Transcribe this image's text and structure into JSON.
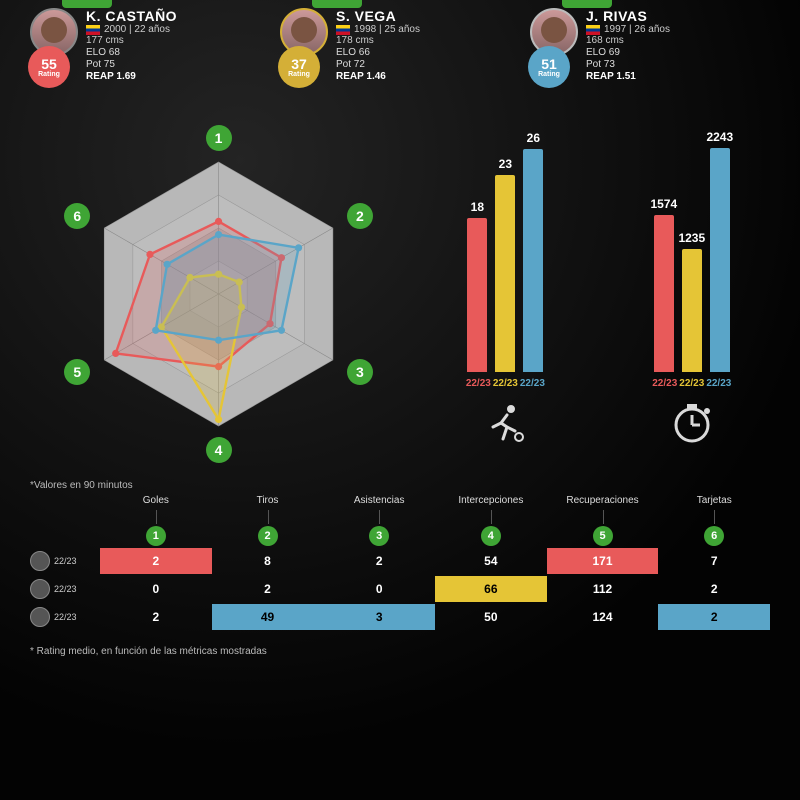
{
  "colors": {
    "p1": "#e85a5a",
    "p2": "#e5c536",
    "p3": "#5aa5c8",
    "green": "#3fa535",
    "bg": "#1a1a1a"
  },
  "season_label": "22/23",
  "players": [
    {
      "name": "K. CASTAÑO",
      "birth_age": "2000 | 22 años",
      "height": "177 cms",
      "rating": "55",
      "rating_label": "Rating",
      "elo": "ELO 68",
      "pot": "Pot 75",
      "reap": "REAP 1.69",
      "badge_style": "red"
    },
    {
      "name": "S. VEGA",
      "birth_age": "1998 | 25 años",
      "height": "178 cms",
      "rating": "37",
      "rating_label": "Rating",
      "elo": "ELO 66",
      "pot": "Pot 72",
      "reap": "REAP 1.46",
      "badge_style": "yellow"
    },
    {
      "name": "J. RIVAS",
      "birth_age": "1997 | 26 años",
      "height": "168 cms",
      "rating": "51",
      "rating_label": "Rating",
      "elo": "ELO 69",
      "pot": "Pot 73",
      "reap": "REAP 1.51",
      "badge_style": "blue"
    }
  ],
  "radar": {
    "axes": [
      "1",
      "2",
      "3",
      "4",
      "5",
      "6"
    ],
    "max_rings": 4,
    "series": [
      {
        "color": "#e85a5a",
        "values": [
          0.55,
          0.55,
          0.45,
          0.55,
          0.9,
          0.6
        ]
      },
      {
        "color": "#e5c536",
        "values": [
          0.15,
          0.18,
          0.2,
          0.95,
          0.5,
          0.25
        ]
      },
      {
        "color": "#5aa5c8",
        "values": [
          0.45,
          0.7,
          0.55,
          0.35,
          0.55,
          0.45
        ]
      }
    ]
  },
  "bars": {
    "groups": [
      {
        "icon": "runner",
        "max": 28,
        "values": [
          {
            "v": 18,
            "color": "#e85a5a",
            "label": "18"
          },
          {
            "v": 23,
            "color": "#e5c536",
            "label": "23"
          },
          {
            "v": 26,
            "color": "#5aa5c8",
            "label": "26"
          }
        ]
      },
      {
        "icon": "clock",
        "max": 2400,
        "values": [
          {
            "v": 1574,
            "color": "#e85a5a",
            "label": "1574"
          },
          {
            "v": 1235,
            "color": "#e5c536",
            "label": "1235"
          },
          {
            "v": 2243,
            "color": "#5aa5c8",
            "label": "2243"
          }
        ]
      }
    ]
  },
  "footnote1": "*Valores en 90 minutos",
  "footnote2": "* Rating medio, en función de las métricas mostradas",
  "table": {
    "headers": [
      "Goles",
      "Tiros",
      "Asistencias",
      "Intercepciones",
      "Recuperaciones",
      "Tarjetas"
    ],
    "header_badges": [
      "1",
      "2",
      "3",
      "4",
      "5",
      "6"
    ],
    "rows": [
      {
        "season": "22/23",
        "cells": [
          {
            "v": "2",
            "hl": "red"
          },
          {
            "v": "8"
          },
          {
            "v": "2"
          },
          {
            "v": "54"
          },
          {
            "v": "171",
            "hl": "red"
          },
          {
            "v": "7"
          }
        ]
      },
      {
        "season": "22/23",
        "cells": [
          {
            "v": "0"
          },
          {
            "v": "2"
          },
          {
            "v": "0"
          },
          {
            "v": "66",
            "hl": "yellow"
          },
          {
            "v": "112"
          },
          {
            "v": "2"
          }
        ]
      },
      {
        "season": "22/23",
        "cells": [
          {
            "v": "2"
          },
          {
            "v": "49",
            "hl": "blue"
          },
          {
            "v": "3",
            "hl": "blue"
          },
          {
            "v": "50"
          },
          {
            "v": "124"
          },
          {
            "v": "2",
            "hl": "blue"
          }
        ]
      }
    ]
  }
}
